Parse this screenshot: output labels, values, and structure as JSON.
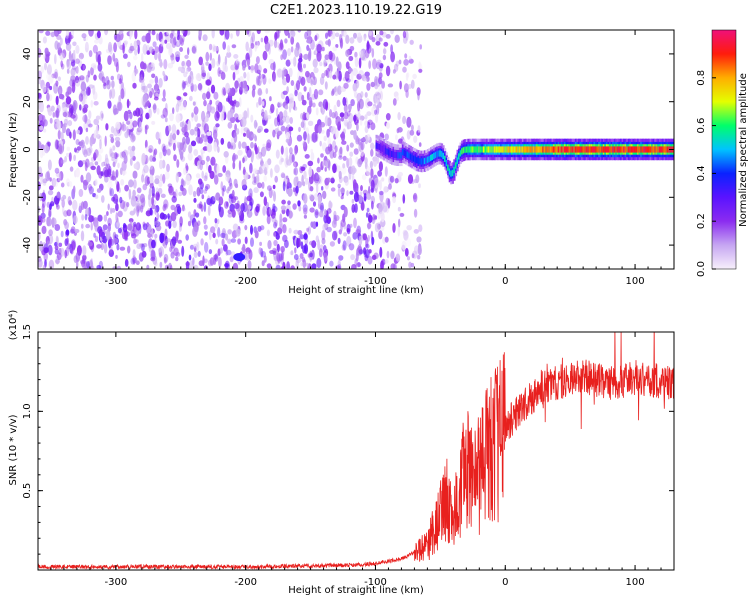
{
  "title": "C2E1.2023.110.19.22.G19",
  "colors": {
    "background": "#ffffff",
    "axis": "#000000",
    "snr_line": "#e8201e",
    "colorbar": [
      "#f7f0fb",
      "#c6a6f2",
      "#8b2cf0",
      "#5a13ff",
      "#0a22ff",
      "#00c3ff",
      "#00ff6a",
      "#e4ff00",
      "#ffae00",
      "#ff1c0c",
      "#f0107a"
    ]
  },
  "chart_data": [
    {
      "type": "heatmap",
      "xlabel": "Height of straight line (km)",
      "ylabel": "Frequency (Hz)",
      "xlim": [
        -360,
        130
      ],
      "ylim": [
        -50,
        50
      ],
      "xticks": [
        -300,
        -200,
        -100,
        0,
        100
      ],
      "xtick_labels": [
        "-300",
        "-200",
        "-100",
        "0",
        "100"
      ],
      "yticks": [
        -40,
        -20,
        0,
        20,
        40
      ],
      "ytick_labels": [
        "-40",
        "-20",
        "0",
        "20",
        "40"
      ],
      "colorbar": {
        "label": "Normalized spectral amplitude",
        "range": [
          0,
          1
        ],
        "ticks": [
          0.0,
          0.2,
          0.4,
          0.6,
          0.8
        ],
        "tick_labels": [
          "0.0",
          "0.2",
          "0.4",
          "0.6",
          "0.8"
        ]
      },
      "features": {
        "noise_region_x": [
          -360,
          -75
        ],
        "noise_amplitude": 0.15,
        "signal_ridge_x": [
          -100,
          130
        ],
        "signal_frequency": 0,
        "signal_amplitude_start": 0.3,
        "signal_amplitude_end": 0.9,
        "dip": {
          "x": -65,
          "frequency": -5
        },
        "secondary_dip": {
          "x": -42,
          "frequency": -10
        },
        "hotspot": {
          "x": -205,
          "frequency": -45,
          "amplitude": 0.35
        }
      },
      "grid": false
    },
    {
      "type": "line",
      "xlabel": "Height of straight line (km)",
      "ylabel": "SNR (10 * v/v)",
      "y_multiplier": "(x10⁴)",
      "xlim": [
        -360,
        130
      ],
      "ylim": [
        0,
        15000
      ],
      "xticks": [
        -300,
        -200,
        -100,
        0,
        100
      ],
      "xtick_labels": [
        "-300",
        "-200",
        "-100",
        "0",
        "100"
      ],
      "yticks": [
        5000,
        10000,
        15000
      ],
      "ytick_labels": [
        "0.5",
        "1.0",
        "1.5"
      ],
      "series": [
        {
          "x": [
            -360,
            -300,
            -200,
            -120,
            -100,
            -80,
            -60,
            -50,
            -45,
            -40,
            -35,
            -30,
            -25,
            -20,
            -15,
            -10,
            -5,
            0,
            10,
            20,
            30,
            40,
            50,
            60,
            70,
            80,
            90,
            100,
            110,
            120,
            130
          ],
          "y": [
            200,
            200,
            200,
            300,
            400,
            700,
            1500,
            3500,
            4500,
            3000,
            5000,
            6500,
            6000,
            6000,
            7000,
            7500,
            8500,
            9000,
            10000,
            10800,
            11500,
            11800,
            12000,
            12200,
            12000,
            11800,
            11900,
            12100,
            12000,
            11900,
            11800
          ]
        }
      ],
      "grid": false
    }
  ]
}
